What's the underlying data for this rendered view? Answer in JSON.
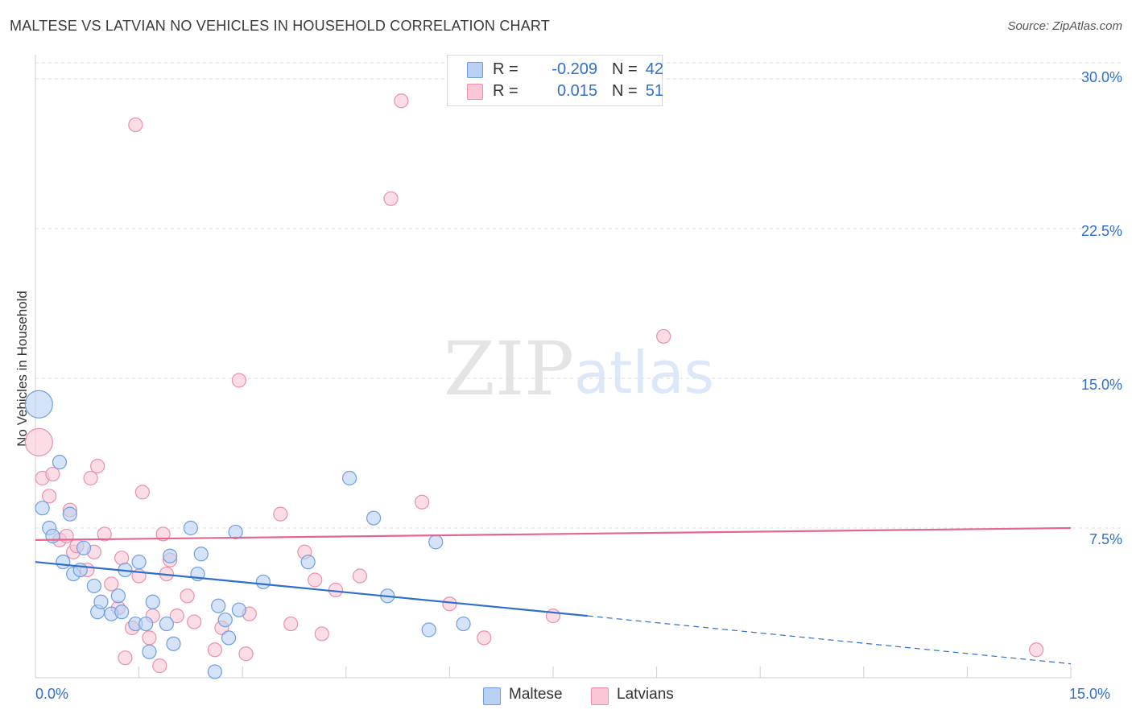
{
  "header": {
    "title": "MALTESE VS LATVIAN NO VEHICLES IN HOUSEHOLD CORRELATION CHART",
    "source": "Source: ZipAtlas.com"
  },
  "watermark": {
    "zip": "ZIP",
    "atlas": "atlas"
  },
  "legend": {
    "r_label": "R =",
    "n_label": "N =",
    "rows": [
      {
        "r": "-0.209",
        "n": "42"
      },
      {
        "r": "0.015",
        "n": "51"
      }
    ]
  },
  "colors": {
    "maltese_fill": "#b8d0f4",
    "maltese_stroke": "#6f9ee0",
    "maltese_line": "#2f6fcc",
    "latvian_fill": "#f9c6d5",
    "latvian_stroke": "#ec8fab",
    "latvian_line": "#e4658d",
    "grid": "#dedede",
    "tick_text": "#2f6fcc"
  },
  "chart_data": {
    "type": "scatter",
    "title": "MALTESE VS LATVIAN NO VEHICLES IN HOUSEHOLD CORRELATION CHART",
    "xlabel": "",
    "ylabel": "No Vehicles in Household",
    "xlim": [
      0,
      15
    ],
    "ylim": [
      0,
      30
    ],
    "x_tick_labels": [
      "0.0%",
      "15.0%"
    ],
    "y_ticks": [
      7.5,
      15.0,
      22.5,
      30.0
    ],
    "y_tick_labels": [
      "7.5%",
      "15.0%",
      "22.5%",
      "30.0%"
    ],
    "grid": "horizontal dashed",
    "legend_position": "bottom",
    "series": [
      {
        "name": "Maltese",
        "r": -0.209,
        "n": 42,
        "trend": {
          "x": [
            0,
            8
          ],
          "y": [
            5.8,
            3.1
          ],
          "dashed_extension_to": [
            15,
            0.7
          ]
        },
        "points": [
          {
            "x": 0.05,
            "y": 13.7,
            "big": true
          },
          {
            "x": 0.1,
            "y": 8.5
          },
          {
            "x": 0.2,
            "y": 7.5
          },
          {
            "x": 0.25,
            "y": 7.1
          },
          {
            "x": 0.35,
            "y": 10.8
          },
          {
            "x": 0.4,
            "y": 5.8
          },
          {
            "x": 0.5,
            "y": 8.2
          },
          {
            "x": 0.55,
            "y": 5.2
          },
          {
            "x": 0.65,
            "y": 5.4
          },
          {
            "x": 0.7,
            "y": 6.5
          },
          {
            "x": 0.85,
            "y": 4.6
          },
          {
            "x": 0.9,
            "y": 3.3
          },
          {
            "x": 0.95,
            "y": 3.8
          },
          {
            "x": 1.1,
            "y": 3.2
          },
          {
            "x": 1.2,
            "y": 4.1
          },
          {
            "x": 1.25,
            "y": 3.3
          },
          {
            "x": 1.3,
            "y": 5.4
          },
          {
            "x": 1.45,
            "y": 2.7
          },
          {
            "x": 1.5,
            "y": 5.8
          },
          {
            "x": 1.6,
            "y": 2.7
          },
          {
            "x": 1.65,
            "y": 1.3
          },
          {
            "x": 1.7,
            "y": 3.8
          },
          {
            "x": 1.9,
            "y": 2.7
          },
          {
            "x": 1.95,
            "y": 6.1
          },
          {
            "x": 2.0,
            "y": 1.7
          },
          {
            "x": 2.25,
            "y": 7.5
          },
          {
            "x": 2.35,
            "y": 5.2
          },
          {
            "x": 2.4,
            "y": 6.2
          },
          {
            "x": 2.6,
            "y": 0.3
          },
          {
            "x": 2.65,
            "y": 3.6
          },
          {
            "x": 2.75,
            "y": 2.9
          },
          {
            "x": 2.8,
            "y": 2.0
          },
          {
            "x": 2.9,
            "y": 7.3
          },
          {
            "x": 2.95,
            "y": 3.4
          },
          {
            "x": 3.3,
            "y": 4.8
          },
          {
            "x": 3.95,
            "y": 5.8
          },
          {
            "x": 4.55,
            "y": 10.0
          },
          {
            "x": 4.9,
            "y": 8.0
          },
          {
            "x": 5.1,
            "y": 4.1
          },
          {
            "x": 5.7,
            "y": 2.4
          },
          {
            "x": 5.8,
            "y": 6.8
          },
          {
            "x": 6.2,
            "y": 2.7
          }
        ]
      },
      {
        "name": "Latvians",
        "r": 0.015,
        "n": 51,
        "trend": {
          "x": [
            0,
            15
          ],
          "y": [
            6.9,
            7.5
          ]
        },
        "points": [
          {
            "x": 0.05,
            "y": 11.8,
            "big": true
          },
          {
            "x": 0.1,
            "y": 10.0
          },
          {
            "x": 0.2,
            "y": 9.1
          },
          {
            "x": 0.25,
            "y": 10.2
          },
          {
            "x": 0.35,
            "y": 6.9
          },
          {
            "x": 0.45,
            "y": 7.1
          },
          {
            "x": 0.5,
            "y": 8.4
          },
          {
            "x": 0.55,
            "y": 6.3
          },
          {
            "x": 0.6,
            "y": 6.6
          },
          {
            "x": 0.75,
            "y": 5.4
          },
          {
            "x": 0.8,
            "y": 10.0
          },
          {
            "x": 0.85,
            "y": 6.3
          },
          {
            "x": 0.9,
            "y": 10.6
          },
          {
            "x": 1.0,
            "y": 7.2
          },
          {
            "x": 1.1,
            "y": 4.7
          },
          {
            "x": 1.2,
            "y": 3.5
          },
          {
            "x": 1.25,
            "y": 6.0
          },
          {
            "x": 1.3,
            "y": 1.0
          },
          {
            "x": 1.4,
            "y": 2.5
          },
          {
            "x": 1.45,
            "y": 27.7
          },
          {
            "x": 1.5,
            "y": 5.1
          },
          {
            "x": 1.55,
            "y": 9.3
          },
          {
            "x": 1.65,
            "y": 2.0
          },
          {
            "x": 1.7,
            "y": 3.1
          },
          {
            "x": 1.8,
            "y": 0.6
          },
          {
            "x": 1.85,
            "y": 7.2
          },
          {
            "x": 1.9,
            "y": 5.2
          },
          {
            "x": 1.95,
            "y": 5.9
          },
          {
            "x": 2.05,
            "y": 3.1
          },
          {
            "x": 2.2,
            "y": 4.1
          },
          {
            "x": 2.3,
            "y": 2.8
          },
          {
            "x": 2.6,
            "y": 1.4
          },
          {
            "x": 2.7,
            "y": 2.5
          },
          {
            "x": 2.95,
            "y": 14.9
          },
          {
            "x": 3.05,
            "y": 1.2
          },
          {
            "x": 3.1,
            "y": 3.2
          },
          {
            "x": 3.55,
            "y": 8.2
          },
          {
            "x": 3.7,
            "y": 2.7
          },
          {
            "x": 3.9,
            "y": 6.3
          },
          {
            "x": 4.05,
            "y": 4.9
          },
          {
            "x": 4.15,
            "y": 2.2
          },
          {
            "x": 4.35,
            "y": 4.4
          },
          {
            "x": 4.7,
            "y": 5.1
          },
          {
            "x": 5.15,
            "y": 24.0
          },
          {
            "x": 5.3,
            "y": 28.9
          },
          {
            "x": 5.6,
            "y": 8.8
          },
          {
            "x": 6.0,
            "y": 3.7
          },
          {
            "x": 6.5,
            "y": 2.0
          },
          {
            "x": 7.5,
            "y": 3.1
          },
          {
            "x": 9.1,
            "y": 17.1
          },
          {
            "x": 14.5,
            "y": 1.4
          }
        ]
      }
    ]
  }
}
